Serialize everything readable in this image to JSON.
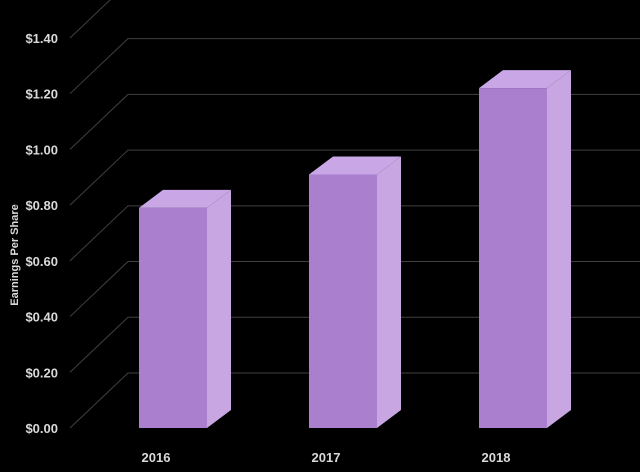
{
  "chart_data": {
    "type": "bar",
    "title": "",
    "xlabel": "",
    "ylabel": "Earnings Per Share",
    "categories": [
      "2016",
      "2017",
      "2018"
    ],
    "values": [
      0.79,
      0.91,
      1.22
    ],
    "ylim": [
      0,
      1.4
    ],
    "yticks": [
      "$0.00",
      "$0.20",
      "$0.40",
      "$0.60",
      "$0.80",
      "$1.00",
      "$1.20",
      "$1.40"
    ],
    "grid": true,
    "style": "3d",
    "colors": {
      "background": "#000000",
      "bar_front": "#a97fce",
      "bar_side": "#c7a6e1",
      "bar_top": "#c9a7e6",
      "grid": "#404040",
      "text": "#d9d9d9"
    }
  }
}
